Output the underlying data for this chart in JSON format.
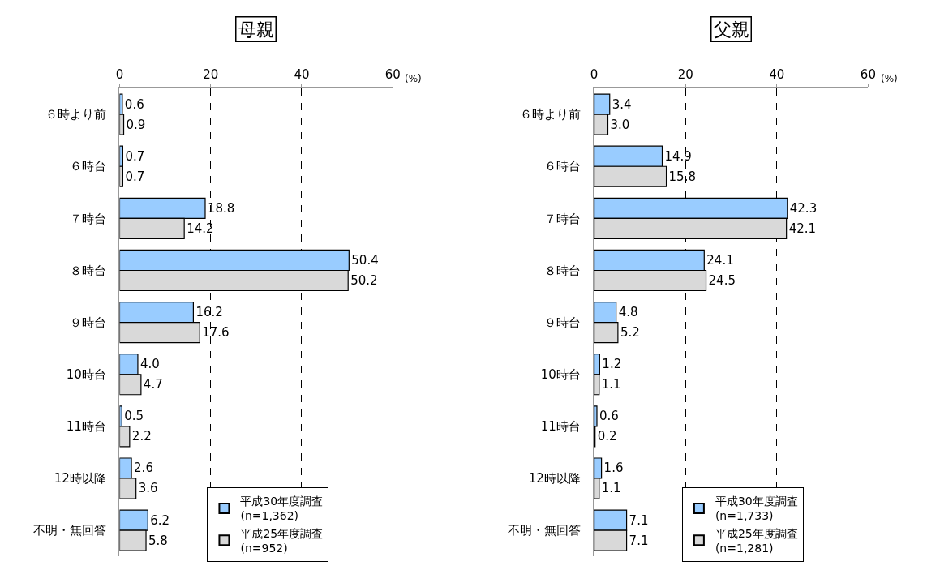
{
  "chart_data": [
    {
      "type": "bar",
      "orientation": "horizontal",
      "title": "母親",
      "xlabel": "(%)",
      "categories": [
        "６時より前",
        "６時台",
        "７時台",
        "８時台",
        "９時台",
        "10時台",
        "11時台",
        "12時以降",
        "不明・無回答"
      ],
      "series": [
        {
          "name": "平成30年度調査\n(n=1,362)",
          "color": "#99ccff",
          "values": [
            0.6,
            0.7,
            18.8,
            50.4,
            16.2,
            4.0,
            0.5,
            2.6,
            6.2
          ],
          "value_labels": [
            "0.6",
            "0.7",
            "18.8",
            "50.4",
            "16.2",
            "4.0",
            "0.5",
            "2.6",
            "6.2"
          ]
        },
        {
          "name": "平成25年度調査\n(n=952)",
          "color": "#d9d9d9",
          "values": [
            0.9,
            0.7,
            14.2,
            50.2,
            17.6,
            4.7,
            2.2,
            3.6,
            5.8
          ],
          "value_labels": [
            "0.9",
            "0.7",
            "14.2",
            "50.2",
            "17.6",
            "4.7",
            "2.2",
            "3.6",
            "5.8"
          ]
        }
      ],
      "xlim": [
        0,
        60
      ],
      "xticks": [
        0,
        20,
        40,
        60
      ],
      "grid": "x",
      "legend": "bottom right"
    },
    {
      "type": "bar",
      "orientation": "horizontal",
      "title": "父親",
      "xlabel": "(%)",
      "categories": [
        "６時より前",
        "６時台",
        "７時台",
        "８時台",
        "９時台",
        "10時台",
        "11時台",
        "12時以降",
        "不明・無回答"
      ],
      "series": [
        {
          "name": "平成30年度調査\n(n=1,733)",
          "color": "#99ccff",
          "values": [
            3.4,
            14.9,
            42.3,
            24.1,
            4.8,
            1.2,
            0.6,
            1.6,
            7.1
          ],
          "value_labels": [
            "3.4",
            "14.9",
            "42.3",
            "24.1",
            "4.8",
            "1.2",
            "0.6",
            "1.6",
            "7.1"
          ]
        },
        {
          "name": "平成25年度調査\n(n=1,281)",
          "color": "#d9d9d9",
          "values": [
            3.0,
            15.8,
            42.1,
            24.5,
            5.2,
            1.1,
            0.2,
            1.1,
            7.1
          ],
          "value_labels": [
            "3.0",
            "15.8",
            "42.1",
            "24.5",
            "5.2",
            "1.1",
            "0.2",
            "1.1",
            "7.1"
          ]
        }
      ],
      "xlim": [
        0,
        60
      ],
      "xticks": [
        0,
        20,
        40,
        60
      ],
      "grid": "x",
      "legend": "bottom right"
    }
  ]
}
